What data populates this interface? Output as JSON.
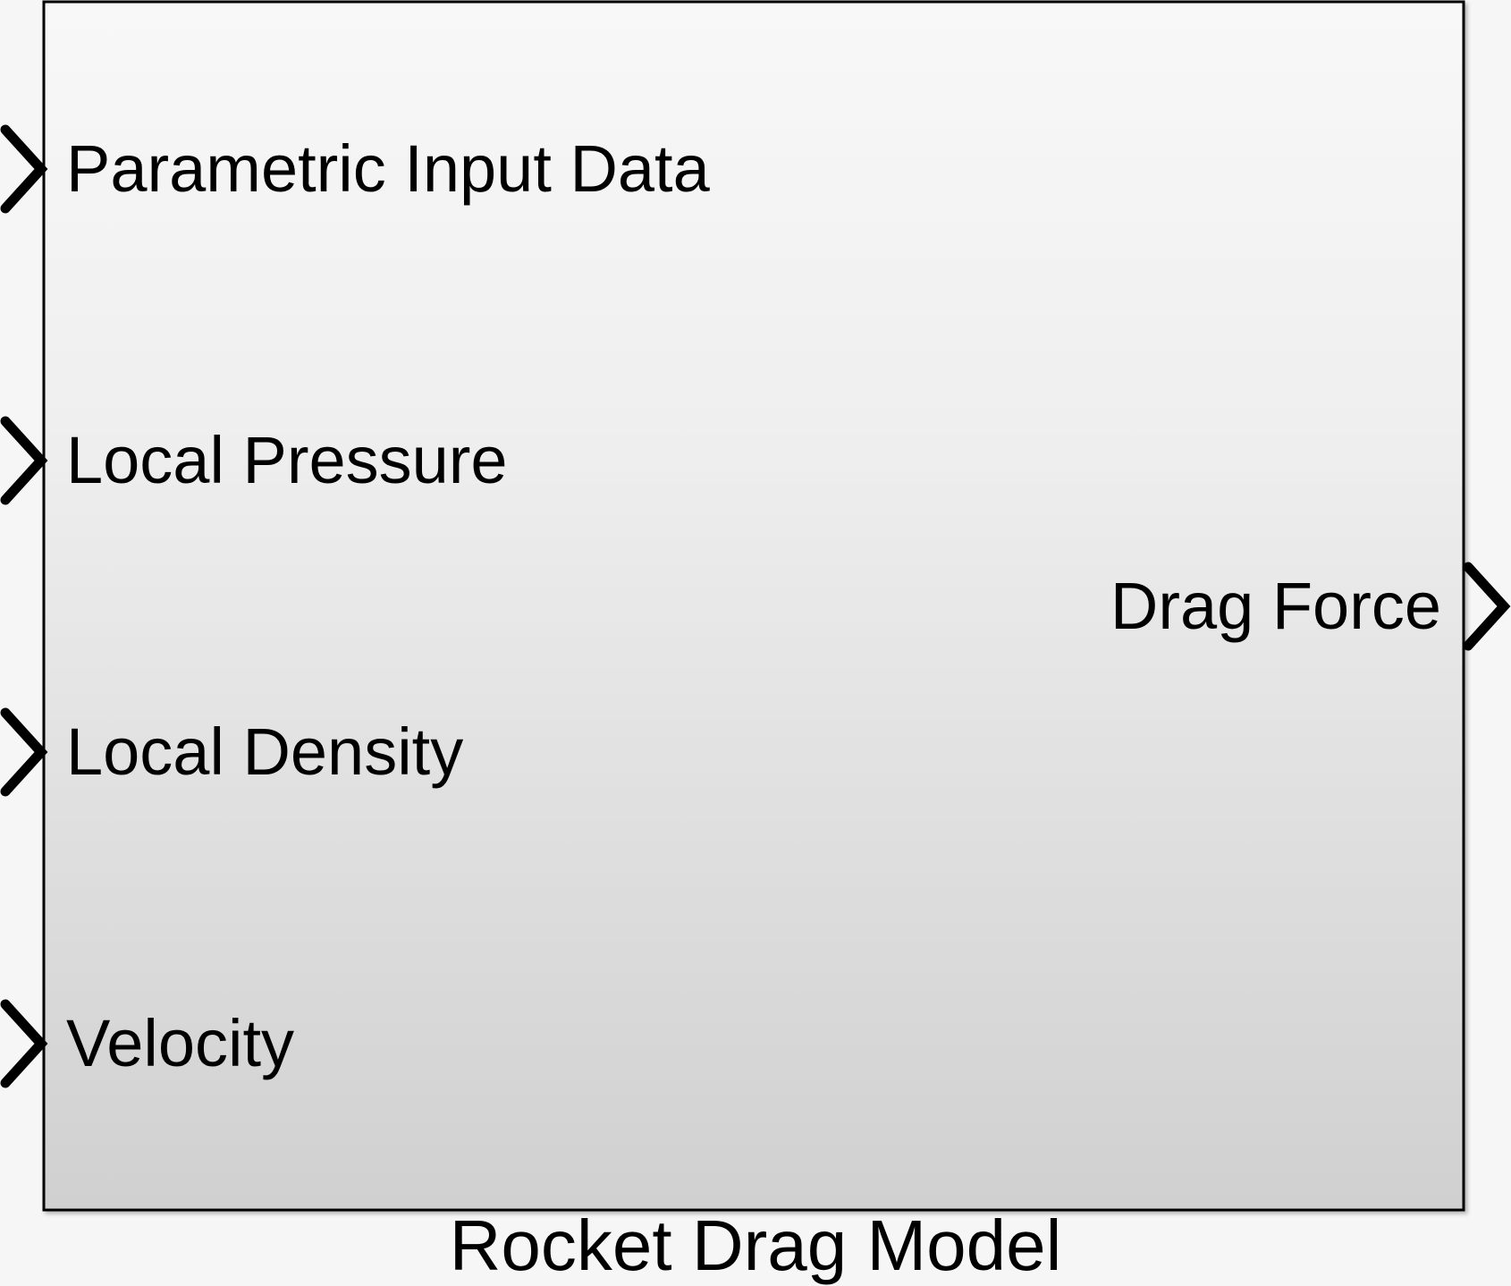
{
  "block": {
    "name": "Rocket Drag Model",
    "gradient_top": "#f8f8f8",
    "gradient_bottom": "#d0d0d0",
    "border_color": "#000000"
  },
  "inputs": [
    {
      "label": "Parametric Input Data"
    },
    {
      "label": "Local Pressure"
    },
    {
      "label": "Local Density"
    },
    {
      "label": "Velocity"
    }
  ],
  "outputs": [
    {
      "label": "Drag Force"
    }
  ]
}
